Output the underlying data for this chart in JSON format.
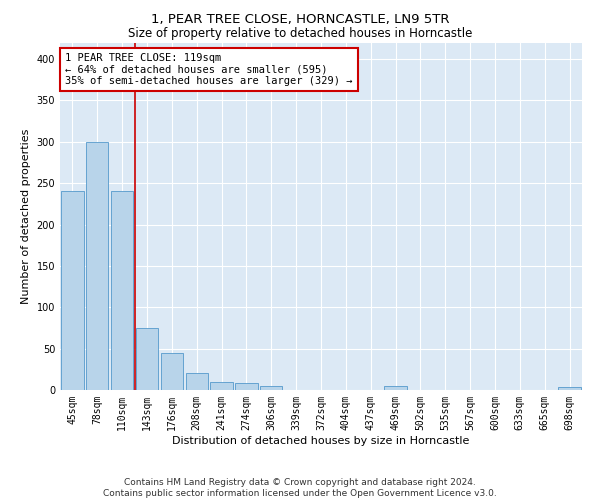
{
  "title": "1, PEAR TREE CLOSE, HORNCASTLE, LN9 5TR",
  "subtitle": "Size of property relative to detached houses in Horncastle",
  "xlabel": "Distribution of detached houses by size in Horncastle",
  "ylabel": "Number of detached properties",
  "categories": [
    "45sqm",
    "78sqm",
    "110sqm",
    "143sqm",
    "176sqm",
    "208sqm",
    "241sqm",
    "274sqm",
    "306sqm",
    "339sqm",
    "372sqm",
    "404sqm",
    "437sqm",
    "469sqm",
    "502sqm",
    "535sqm",
    "567sqm",
    "600sqm",
    "633sqm",
    "665sqm",
    "698sqm"
  ],
  "values": [
    240,
    300,
    240,
    75,
    45,
    20,
    10,
    8,
    5,
    0,
    0,
    0,
    0,
    5,
    0,
    0,
    0,
    0,
    0,
    0,
    4
  ],
  "bar_color": "#b8d4ea",
  "bar_edge_color": "#5599cc",
  "vline_x": 2.5,
  "vline_color": "#cc0000",
  "annotation_text": "1 PEAR TREE CLOSE: 119sqm\n← 64% of detached houses are smaller (595)\n35% of semi-detached houses are larger (329) →",
  "annotation_box_color": "#ffffff",
  "annotation_box_edge_color": "#cc0000",
  "ylim": [
    0,
    420
  ],
  "yticks": [
    0,
    50,
    100,
    150,
    200,
    250,
    300,
    350,
    400
  ],
  "background_color": "#dce9f5",
  "footer_text": "Contains HM Land Registry data © Crown copyright and database right 2024.\nContains public sector information licensed under the Open Government Licence v3.0.",
  "title_fontsize": 9.5,
  "subtitle_fontsize": 8.5,
  "xlabel_fontsize": 8,
  "ylabel_fontsize": 8,
  "annotation_fontsize": 7.5,
  "tick_fontsize": 7,
  "footer_fontsize": 6.5
}
